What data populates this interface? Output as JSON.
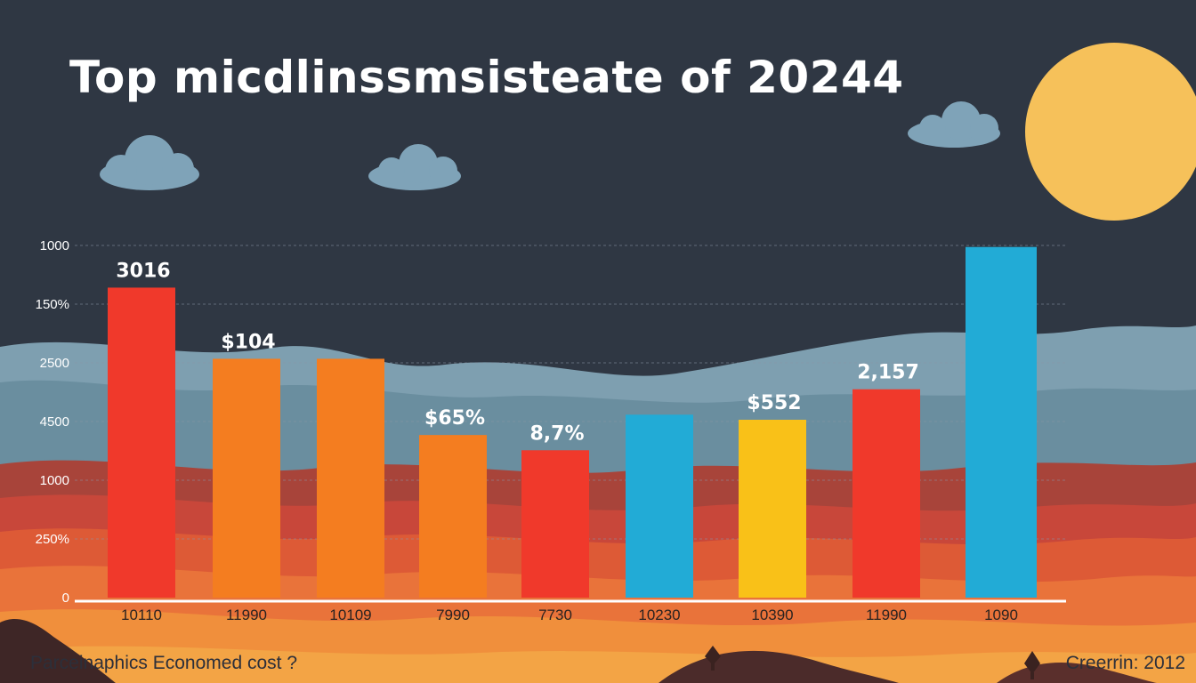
{
  "title": "Top micdlinssmsisteate of 20244",
  "footer_left": "Parceinaphics Economed cost ?",
  "footer_right": "Creerrin: 2012",
  "colors": {
    "background": "#2f3743",
    "sun": "#f6c15a",
    "cloud": "#7fa3b8",
    "red": "#f0392b",
    "orange": "#f47d20",
    "blue": "#22abd6",
    "yellow": "#f9c118",
    "axis": "#ffffff"
  },
  "chart_data": {
    "type": "bar",
    "title": "Top micdlinssmsisteate of 20244",
    "xlabel": "",
    "ylabel": "",
    "grid": true,
    "y_tick_labels": [
      "0",
      "250%",
      "1000",
      "4500",
      "2500",
      "150%",
      "1000"
    ],
    "categories": [
      "10110",
      "11990",
      "10109",
      "7990",
      "7730",
      "10230",
      "10390",
      "11990",
      "1090"
    ],
    "values": [
      6.1,
      4.7,
      4.7,
      3.2,
      2.9,
      3.6,
      3.5,
      4.1,
      6.9
    ],
    "ylim": [
      0,
      7
    ],
    "bar_colors": [
      "#f0392b",
      "#f47d20",
      "#f47d20",
      "#f47d20",
      "#f0392b",
      "#22abd6",
      "#f9c118",
      "#f0392b",
      "#22abd6"
    ],
    "data_labels": [
      "3016",
      "$104",
      "",
      "$65%",
      "8,7%",
      "",
      "$552",
      "2,157",
      ""
    ]
  }
}
